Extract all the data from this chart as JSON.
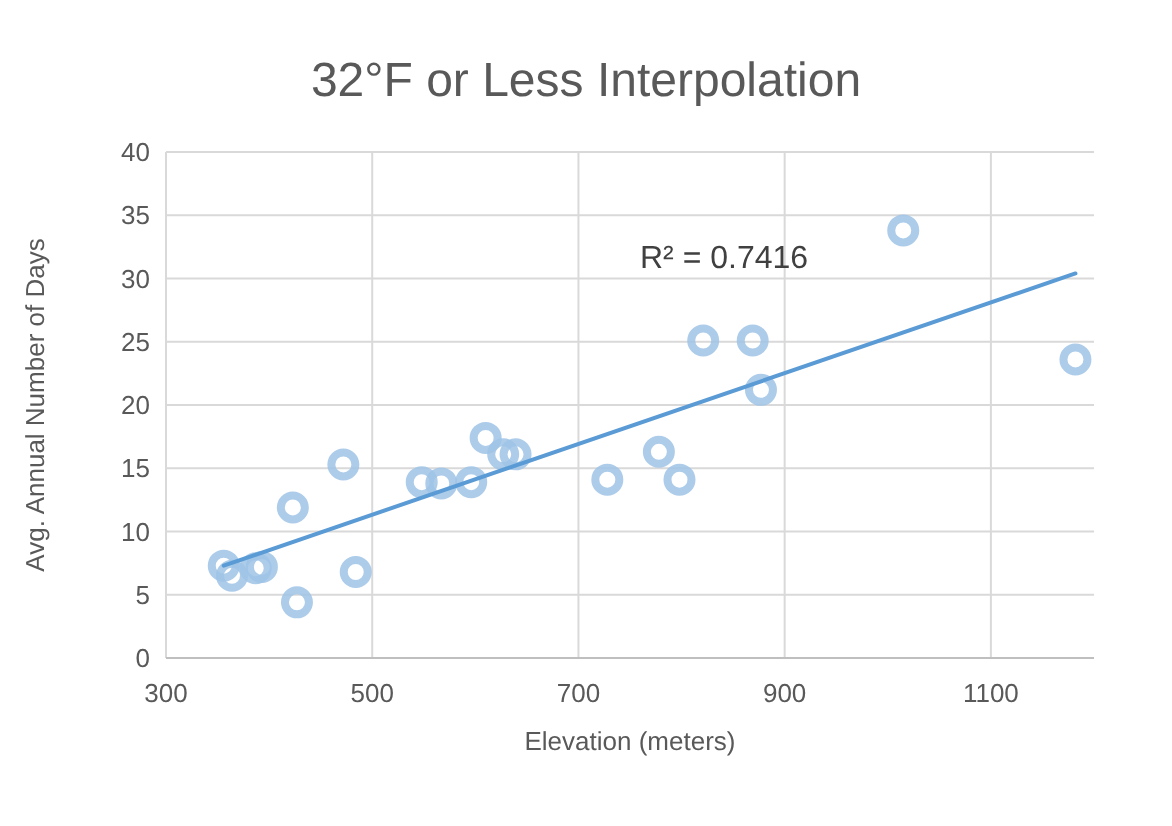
{
  "chart_data": {
    "type": "scatter",
    "title": "32°F or Less Interpolation",
    "xlabel": "Elevation (meters)",
    "ylabel": "Avg. Annual Number of Days",
    "xlim": [
      300,
      1200
    ],
    "xticks": [
      300,
      500,
      700,
      900,
      1100
    ],
    "ylim": [
      0,
      40
    ],
    "yticks": [
      0,
      5,
      10,
      15,
      20,
      25,
      30,
      35,
      40
    ],
    "grid": true,
    "marker": "circle",
    "annotations": [
      "R² = 0.7416"
    ],
    "series": [
      {
        "color": "#9dc3e6",
        "x": [
          356,
          364,
          387,
          393,
          423,
          427,
          472,
          484,
          548,
          567,
          596,
          610,
          627,
          639,
          728,
          778,
          798,
          821,
          869,
          877,
          1015,
          1182
        ],
        "values": [
          7.3,
          6.5,
          7.1,
          7.2,
          11.9,
          4.4,
          15.3,
          6.8,
          13.9,
          13.8,
          13.9,
          17.4,
          16.1,
          16.1,
          14.1,
          16.3,
          14.1,
          25.1,
          25.1,
          21.2,
          33.8,
          23.6
        ]
      },
      {
        "type": "line",
        "color": "#5b9bd5",
        "line_style": "solid",
        "marker": "none",
        "x": [
          356,
          1182
        ],
        "values": [
          7.3,
          30.4
        ]
      }
    ]
  }
}
